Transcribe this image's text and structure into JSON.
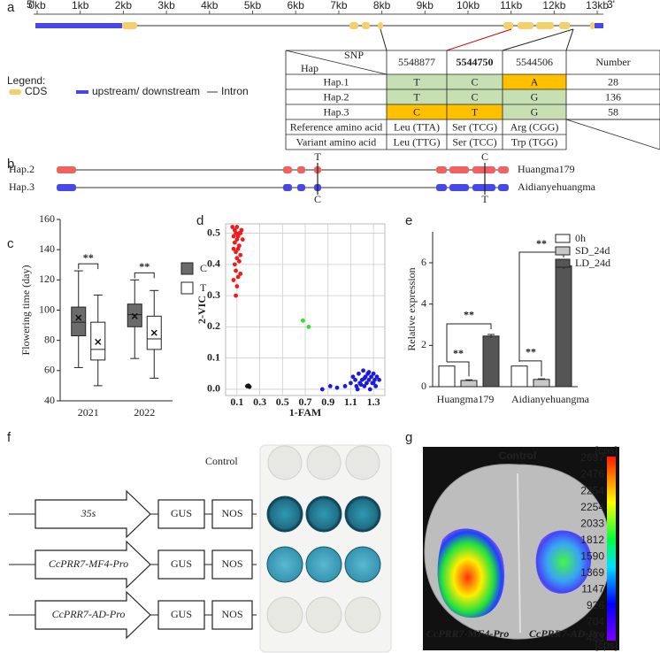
{
  "panel_labels": [
    "a",
    "b",
    "c",
    "d",
    "e",
    "f",
    "g"
  ],
  "gene_structure": {
    "five_prime": "5'",
    "three_prime": "3'",
    "ruler": [
      "0kb",
      "1kb",
      "2kb",
      "3kb",
      "4kb",
      "5kb",
      "6kb",
      "7kb",
      "8kb",
      "9kb",
      "10kb",
      "11kb",
      "12kb",
      "13kb"
    ],
    "legend": {
      "title": "Legend:",
      "items": [
        "CDS",
        "upstream/ downstream",
        "Intron"
      ]
    }
  },
  "snp_table": {
    "corner_top": "SNP",
    "corner_bottom": "Hap",
    "columns": [
      "5548877",
      "5544750",
      "5544506",
      "Number"
    ],
    "rows": [
      [
        "Hap.1",
        "T",
        "C",
        "A",
        "28"
      ],
      [
        "Hap.2",
        "T",
        "C",
        "G",
        "136"
      ],
      [
        "Hap.3",
        "C",
        "T",
        "G",
        "58"
      ],
      [
        "Reference amino acid",
        "Leu (TTA)",
        "Ser (TCG)",
        "Arg (CGG)"
      ],
      [
        "Variant amino acid",
        "Leu (TTG)",
        "Ser (TCC)",
        "Trp (TGG)"
      ]
    ]
  },
  "haplotypes": [
    {
      "name": "Hap.2",
      "variety": "Huangma179",
      "snps": [
        "T",
        "C"
      ]
    },
    {
      "name": "Hap.3",
      "variety": "Aidianyehuangma",
      "snps": [
        "C",
        "T"
      ]
    }
  ],
  "chart_data": [
    {
      "type": "box",
      "ylabel": "Flowering time (day)",
      "ylim": [
        40,
        160
      ],
      "yticks": [
        40,
        60,
        80,
        100,
        120,
        140,
        160
      ],
      "categories": [
        "2021",
        "2022"
      ],
      "annotations": [
        "**",
        "**"
      ],
      "series": [
        {
          "name": "C",
          "color": "#6b6b6b",
          "boxes": [
            {
              "min": 62,
              "q1": 83,
              "median": 92,
              "q3": 102,
              "max": 126,
              "mean": 95
            },
            {
              "min": 68,
              "q1": 89,
              "median": 97,
              "q3": 104,
              "max": 120,
              "mean": 96
            }
          ]
        },
        {
          "name": "T",
          "color": "#ffffff",
          "boxes": [
            {
              "min": 50,
              "q1": 67,
              "median": 74,
              "q3": 92,
              "max": 110,
              "mean": 79
            },
            {
              "min": 55,
              "q1": 74,
              "median": 81,
              "q3": 96,
              "max": 113,
              "mean": 85
            }
          ]
        }
      ]
    },
    {
      "type": "scatter",
      "xlabel": "1-FAM",
      "ylabel": "2-VIC",
      "grid": true,
      "xlim": [
        0,
        1.4
      ],
      "ylim": [
        -0.02,
        0.53
      ],
      "xticks": [
        0.1,
        0.3,
        0.5,
        0.7,
        0.9,
        1.1,
        1.3
      ],
      "yticks": [
        {
          "value": 0,
          "label": "0.0"
        },
        0.1,
        0.2,
        0.3,
        0.4,
        0.5
      ],
      "series": [
        {
          "color": "#ee1c1c",
          "x": [
            0.06,
            0.08,
            0.1,
            0.12,
            0.14,
            0.07,
            0.09,
            0.11,
            0.13,
            0.15,
            0.08,
            0.1,
            0.12,
            0.07,
            0.09,
            0.11,
            0.13,
            0.1,
            0.08,
            0.12,
            0.09,
            0.11,
            0.07,
            0.1,
            0.13,
            0.09
          ],
          "values": [
            0.52,
            0.51,
            0.52,
            0.5,
            0.51,
            0.49,
            0.5,
            0.49,
            0.5,
            0.48,
            0.47,
            0.48,
            0.46,
            0.45,
            0.44,
            0.45,
            0.43,
            0.42,
            0.4,
            0.41,
            0.38,
            0.36,
            0.35,
            0.33,
            0.37,
            0.3
          ]
        },
        {
          "color": "#111111",
          "x": [
            0.19,
            0.2,
            0.21
          ],
          "values": [
            0.01,
            0.012,
            0.008
          ]
        },
        {
          "color": "#33dd33",
          "x": [
            0.68,
            0.73
          ],
          "values": [
            0.22,
            0.2
          ]
        },
        {
          "color": "#1a1ae0",
          "x": [
            0.85,
            0.92,
            0.98,
            1.05,
            1.1,
            1.12,
            1.14,
            1.15,
            1.17,
            1.18,
            1.2,
            1.21,
            1.22,
            1.23,
            1.24,
            1.25,
            1.26,
            1.27,
            1.28,
            1.29,
            1.3,
            1.31,
            1.32,
            1.33,
            1.35,
            1.16,
            1.19,
            1.22,
            1.26,
            1.3
          ],
          "values": [
            0.0,
            0.01,
            0.005,
            0.01,
            0.02,
            0.04,
            0.03,
            0.01,
            0.05,
            0.02,
            0.03,
            0.06,
            0.01,
            0.04,
            0.02,
            0.05,
            0.03,
            0.0,
            0.04,
            0.02,
            0.05,
            0.03,
            0.01,
            0.04,
            0.03,
            0.0,
            0.015,
            0.035,
            0.055,
            0.02
          ]
        }
      ]
    },
    {
      "type": "bar",
      "ylabel": "Relative expression",
      "ylim": [
        0,
        7.5
      ],
      "yticks": [
        0,
        2,
        4,
        6
      ],
      "legend": "top-right",
      "categories": [
        "Huangma179",
        "Aidianyehuangma"
      ],
      "annotations": [
        "**",
        "**",
        "**",
        "**"
      ],
      "series": [
        {
          "name": "0h",
          "color": "#ffffff",
          "values": [
            1.0,
            1.0
          ],
          "errors": [
            0,
            0
          ]
        },
        {
          "name": "SD_24d",
          "color": "#c8c8c8",
          "values": [
            0.3,
            0.35
          ],
          "errors": [
            0.03,
            0.03
          ]
        },
        {
          "name": "LD_24d",
          "color": "#555555",
          "values": [
            2.45,
            5.85
          ],
          "errors": [
            0.08,
            0.15
          ]
        }
      ]
    }
  ],
  "gus_assay": {
    "control": "Control",
    "promoters": [
      "35s",
      "CcPRR7-MF4-Pro",
      "CcPRR7-AD-Pro"
    ],
    "reporter": "GUS",
    "terminator": "NOS"
  },
  "luminescence": {
    "title": "Control",
    "unit": "[cps]",
    "scale_labels": [
      "2697",
      "2476",
      "2254",
      "2254",
      "2033",
      "1812",
      "1590",
      "1369",
      "1147",
      "926",
      "704",
      "483"
    ],
    "left_label": "CcPRR7-MF4-Pro",
    "right_label": "CcPRR7-AD-Pro"
  }
}
